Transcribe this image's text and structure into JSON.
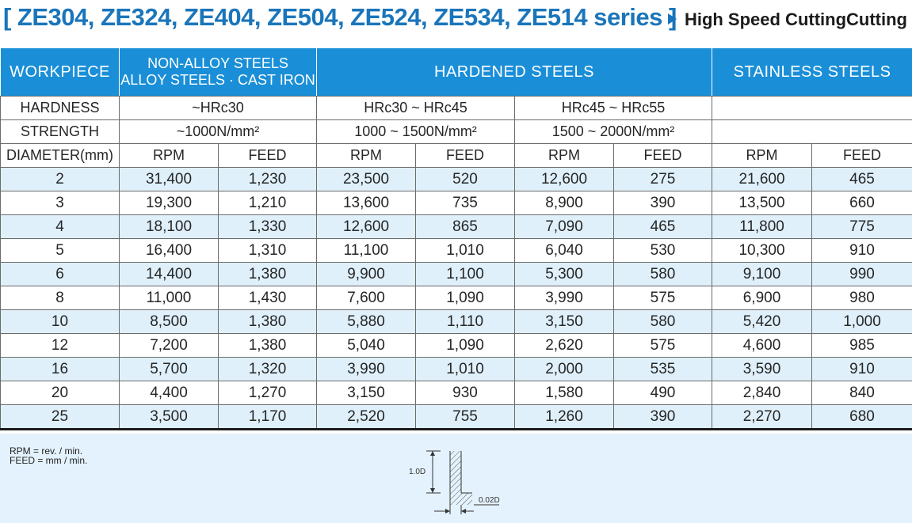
{
  "header": {
    "title": "[ ZE304, ZE324, ZE404, ZE504, ZE524, ZE534, ZE514 series ]",
    "subtitle": "High Speed CuttingCutting"
  },
  "table": {
    "workpiece_label": "WORKPIECE",
    "group1_line1": "NON-ALLOY STEELS",
    "group1_line2": "ALLOY STEELS · CAST IRON",
    "group2": "HARDENED STEELS",
    "group3": "STAINLESS STEELS",
    "hardness_label": "HARDNESS",
    "hardness_g1": "~HRc30",
    "hardness_g2a": "HRc30 ~ HRc45",
    "hardness_g2b": "HRc45 ~ HRc55",
    "strength_label": "STRENGTH",
    "strength_g1": "~1000N/mm²",
    "strength_g2a": "1000 ~ 1500N/mm²",
    "strength_g2b": "1500 ~ 2000N/mm²",
    "diameter_label": "DIAMETER(mm)",
    "rpm_label": "RPM",
    "feed_label": "FEED",
    "rows": [
      [
        "2",
        "31,400",
        "1,230",
        "23,500",
        "520",
        "12,600",
        "275",
        "21,600",
        "465"
      ],
      [
        "3",
        "19,300",
        "1,210",
        "13,600",
        "735",
        "8,900",
        "390",
        "13,500",
        "660"
      ],
      [
        "4",
        "18,100",
        "1,330",
        "12,600",
        "865",
        "7,090",
        "465",
        "11,800",
        "775"
      ],
      [
        "5",
        "16,400",
        "1,310",
        "11,100",
        "1,010",
        "6,040",
        "530",
        "10,300",
        "910"
      ],
      [
        "6",
        "14,400",
        "1,380",
        "9,900",
        "1,100",
        "5,300",
        "580",
        "9,100",
        "990"
      ],
      [
        "8",
        "11,000",
        "1,430",
        "7,600",
        "1,090",
        "3,990",
        "575",
        "6,900",
        "980"
      ],
      [
        "10",
        "8,500",
        "1,380",
        "5,880",
        "1,110",
        "3,150",
        "580",
        "5,420",
        "1,000"
      ],
      [
        "12",
        "7,200",
        "1,380",
        "5,040",
        "1,090",
        "2,620",
        "575",
        "4,600",
        "985"
      ],
      [
        "16",
        "5,700",
        "1,320",
        "3,990",
        "1,010",
        "2,000",
        "535",
        "3,590",
        "910"
      ],
      [
        "20",
        "4,400",
        "1,270",
        "3,150",
        "930",
        "1,580",
        "490",
        "2,840",
        "840"
      ],
      [
        "25",
        "3,500",
        "1,170",
        "2,520",
        "755",
        "1,260",
        "390",
        "2,270",
        "680"
      ]
    ]
  },
  "notes": {
    "rpm_def": "RPM = rev. / min.",
    "feed_def": "FEED = mm / min.",
    "depth_label": "1.0D",
    "width_label": "0.02D"
  },
  "colors": {
    "accent": "#1a75ba",
    "header_bg": "#1a8fd8",
    "row_shade": "#dff0fb",
    "notes_bg": "#e3f2fc"
  }
}
